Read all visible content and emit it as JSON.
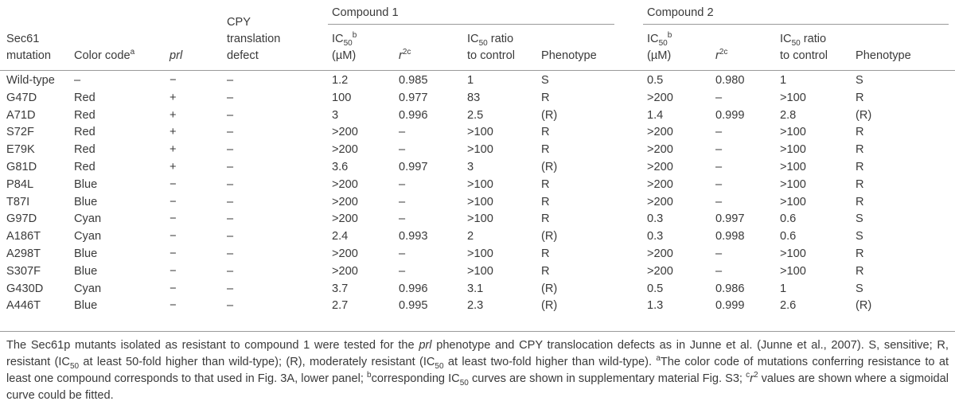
{
  "table": {
    "group_headers": [
      "Compound 1",
      "Compound 2"
    ],
    "columns": [
      [
        [
          {
            "text": "Sec61"
          }
        ],
        [
          {
            "text": "mutation"
          }
        ]
      ],
      [
        [
          {
            "text": "Color code"
          },
          {
            "text": "a",
            "style": "sup"
          }
        ]
      ],
      [
        [
          {
            "text": "prl",
            "style": "italic"
          }
        ]
      ],
      [
        [
          {
            "text": "CPY"
          }
        ],
        [
          {
            "text": "translation"
          }
        ],
        [
          {
            "text": "defect"
          }
        ]
      ],
      [
        [
          {
            "text": "IC"
          },
          {
            "text": "50",
            "style": "sub"
          },
          {
            "text": "b",
            "style": "sup"
          }
        ],
        [
          {
            "text": "(µM)"
          }
        ]
      ],
      [
        [
          {
            "text": "r",
            "style": "italic"
          },
          {
            "text": "2c",
            "style": "sup"
          }
        ]
      ],
      [
        [
          {
            "text": "IC"
          },
          {
            "text": "50",
            "style": "sub"
          },
          {
            "text": " ratio"
          }
        ],
        [
          {
            "text": "to control"
          }
        ]
      ],
      [
        [
          {
            "text": "Phenotype"
          }
        ]
      ],
      [
        [
          {
            "text": "IC"
          },
          {
            "text": "50",
            "style": "sub"
          },
          {
            "text": "b",
            "style": "sup"
          }
        ],
        [
          {
            "text": "(µM)"
          }
        ]
      ],
      [
        [
          {
            "text": "r",
            "style": "italic"
          },
          {
            "text": "2c",
            "style": "sup"
          }
        ]
      ],
      [
        [
          {
            "text": "IC"
          },
          {
            "text": "50",
            "style": "sub"
          },
          {
            "text": " ratio"
          }
        ],
        [
          {
            "text": "to control"
          }
        ]
      ],
      [
        [
          {
            "text": "Phenotype"
          }
        ]
      ]
    ],
    "rows": [
      [
        "Wild-type",
        "–",
        "−",
        "–",
        "1.2",
        "0.985",
        "1",
        "S",
        "0.5",
        "0.980",
        "1",
        "S"
      ],
      [
        "G47D",
        "Red",
        "+",
        "–",
        "100",
        "0.977",
        "83",
        "R",
        ">200",
        "–",
        ">100",
        "R"
      ],
      [
        "A71D",
        "Red",
        "+",
        "–",
        "3",
        "0.996",
        "2.5",
        "(R)",
        "1.4",
        "0.999",
        "2.8",
        "(R)"
      ],
      [
        "S72F",
        "Red",
        "+",
        "–",
        ">200",
        "–",
        ">100",
        "R",
        ">200",
        "–",
        ">100",
        "R"
      ],
      [
        "E79K",
        "Red",
        "+",
        "–",
        ">200",
        "–",
        ">100",
        "R",
        ">200",
        "–",
        ">100",
        "R"
      ],
      [
        "G81D",
        "Red",
        "+",
        "–",
        "3.6",
        "0.997",
        "3",
        "(R)",
        ">200",
        "–",
        ">100",
        "R"
      ],
      [
        "P84L",
        "Blue",
        "−",
        "–",
        ">200",
        "–",
        ">100",
        "R",
        ">200",
        "–",
        ">100",
        "R"
      ],
      [
        "T87I",
        "Blue",
        "−",
        "–",
        ">200",
        "–",
        ">100",
        "R",
        ">200",
        "–",
        ">100",
        "R"
      ],
      [
        "G97D",
        "Cyan",
        "−",
        "–",
        ">200",
        "–",
        ">100",
        "R",
        "0.3",
        "0.997",
        "0.6",
        "S"
      ],
      [
        "A186T",
        "Cyan",
        "−",
        "–",
        "2.4",
        "0.993",
        "2",
        "(R)",
        "0.3",
        "0.998",
        "0.6",
        "S"
      ],
      [
        "A298T",
        "Blue",
        "−",
        "–",
        ">200",
        "–",
        ">100",
        "R",
        ">200",
        "–",
        ">100",
        "R"
      ],
      [
        "S307F",
        "Blue",
        "−",
        "–",
        ">200",
        "–",
        ">100",
        "R",
        ">200",
        "–",
        ">100",
        "R"
      ],
      [
        "G430D",
        "Cyan",
        "−",
        "–",
        "3.7",
        "0.996",
        "3.1",
        "(R)",
        "0.5",
        "0.986",
        "1",
        "S"
      ],
      [
        "A446T",
        "Blue",
        "−",
        "–",
        "2.7",
        "0.995",
        "2.3",
        "(R)",
        "1.3",
        "0.999",
        "2.6",
        "(R)"
      ]
    ]
  },
  "footnote": [
    {
      "text": "The Sec61p mutants isolated as resistant to compound 1 were tested for the "
    },
    {
      "text": "prl",
      "style": "italic"
    },
    {
      "text": " phenotype and CPY translocation defects as in Junne et al. (Junne et al., 2007). S, sensitive; R, resistant (IC"
    },
    {
      "text": "50",
      "style": "sub"
    },
    {
      "text": " at least 50-fold higher than wild-type); (R), moderately resistant (IC"
    },
    {
      "text": "50",
      "style": "sub"
    },
    {
      "text": " at least two-fold higher than wild-type). "
    },
    {
      "text": "a",
      "style": "sup"
    },
    {
      "text": "The color code of mutations conferring resistance to at least one compound corresponds to that used in Fig. 3A, lower panel; "
    },
    {
      "text": "b",
      "style": "sup"
    },
    {
      "text": "corresponding IC"
    },
    {
      "text": "50",
      "style": "sub"
    },
    {
      "text": " curves are shown in supplementary material Fig. S3; "
    },
    {
      "text": "c",
      "style": "sup"
    },
    {
      "text": "r",
      "style": "italic"
    },
    {
      "text": "2",
      "style": "sup"
    },
    {
      "text": " values are shown where a sigmoidal curve could be fitted."
    }
  ]
}
